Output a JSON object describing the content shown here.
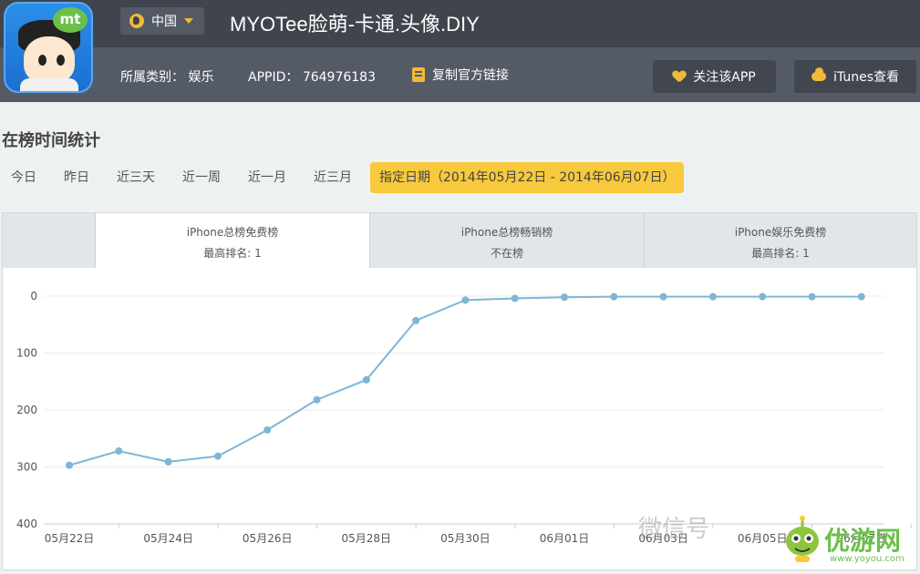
{
  "header": {
    "region_label": "中国",
    "app_title": "MYOTee脸萌-卡通.头像.DIY",
    "icon_badge": "mt",
    "category_label": "所属类别：",
    "category_value": "娱乐",
    "appid_label": "APPID：",
    "appid_value": "764976183",
    "copy_link_label": "复制官方链接",
    "follow_label": "关注该APP",
    "itunes_label": "iTunes查看",
    "accent_color": "#f0b93a"
  },
  "section": {
    "title": "在榜时间统计"
  },
  "range_tabs": [
    {
      "label": "今日"
    },
    {
      "label": "昨日"
    },
    {
      "label": "近三天"
    },
    {
      "label": "近一周"
    },
    {
      "label": "近一月"
    },
    {
      "label": "近三月"
    },
    {
      "label": "指定日期（2014年05月22日 -  2014年06月07日）",
      "active": true
    }
  ],
  "chart_tabs": [
    {
      "title": "iPhone总榜免费榜",
      "sub": "最高排名: 1",
      "active": true
    },
    {
      "title": "iPhone总榜畅销榜",
      "sub": "不在榜",
      "active": false
    },
    {
      "title": "iPhone娱乐免费榜",
      "sub": "最高排名: 1",
      "active": false
    }
  ],
  "chart_data": {
    "type": "line",
    "title": "",
    "xlabel": "",
    "ylabel": "",
    "y_reversed": true,
    "ylim": [
      0,
      400
    ],
    "yticks": [
      "0",
      "100",
      "200",
      "300",
      "400"
    ],
    "xticks": [
      "05月22日",
      "05月24日",
      "05月26日",
      "05月28日",
      "05月30日",
      "06月01日",
      "06月03日",
      "06月05日",
      "06月07日"
    ],
    "x": [
      "05月22日",
      "05月23日",
      "05月24日",
      "05月25日",
      "05月26日",
      "05月27日",
      "05月28日",
      "05月29日",
      "05月30日",
      "05月31日",
      "06月01日",
      "06月02日",
      "06月03日",
      "06月04日",
      "06月05日",
      "06月06日",
      "06月07日"
    ],
    "series": [
      {
        "values": [
          297,
          272,
          291,
          281,
          235,
          182,
          147,
          43,
          7,
          4,
          2,
          1,
          1,
          1,
          1,
          1,
          1
        ],
        "color": "#7eb6d6"
      }
    ],
    "grid": true
  },
  "watermark": {
    "text": "微信号",
    "brand_text": "优游网",
    "brand_url": "www.yoyou.com"
  }
}
